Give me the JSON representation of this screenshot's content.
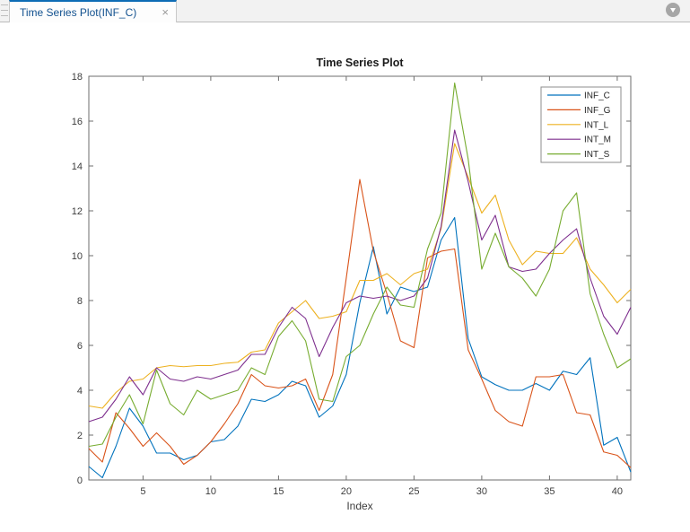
{
  "tab": {
    "label": "Time Series Plot(INF_C)",
    "close_icon": "×",
    "accent_color": "#0d6cb5",
    "text_color": "#12518f"
  },
  "toolbar": {
    "collapse_icon": "chevron-down"
  },
  "chart_data": {
    "type": "line",
    "title": "Time Series Plot",
    "xlabel": "Index",
    "ylabel": "",
    "xlim": [
      1,
      41
    ],
    "ylim": [
      0,
      18
    ],
    "n_points": 41,
    "xticks": [
      5,
      10,
      15,
      20,
      25,
      30,
      35,
      40
    ],
    "yticks": [
      0,
      2,
      4,
      6,
      8,
      10,
      12,
      14,
      16,
      18
    ],
    "grid": false,
    "legend_position": "top-right-inside",
    "axis_color": "#6e6e6e",
    "label_color": "#3d3d3d",
    "series": [
      {
        "name": "INF_C",
        "color": "#0072BD",
        "values": [
          0.6,
          0.1,
          1.5,
          3.2,
          2.4,
          1.2,
          1.2,
          0.9,
          1.1,
          1.7,
          1.8,
          2.4,
          3.6,
          3.5,
          3.8,
          4.4,
          4.2,
          2.8,
          3.3,
          4.7,
          7.9,
          10.4,
          7.4,
          8.6,
          8.4,
          8.6,
          10.7,
          11.7,
          6.3,
          4.6,
          4.25,
          4.0,
          4.0,
          4.3,
          4.0,
          4.85,
          4.7,
          5.45,
          1.55,
          1.9,
          0.35
        ]
      },
      {
        "name": "INF_G",
        "color": "#D95319",
        "values": [
          1.4,
          0.8,
          3.0,
          2.3,
          1.5,
          2.1,
          1.5,
          0.7,
          1.1,
          1.7,
          2.5,
          3.4,
          4.7,
          4.2,
          4.1,
          4.2,
          4.5,
          3.1,
          4.7,
          9.0,
          13.4,
          10.2,
          8.3,
          6.2,
          5.9,
          9.9,
          10.2,
          10.3,
          5.8,
          4.5,
          3.1,
          2.6,
          2.4,
          4.6,
          4.6,
          4.7,
          3.0,
          2.9,
          1.25,
          1.1,
          0.55
        ]
      },
      {
        "name": "INT_L",
        "color": "#EDB120",
        "values": [
          3.3,
          3.2,
          3.9,
          4.4,
          4.5,
          5.0,
          5.1,
          5.05,
          5.1,
          5.1,
          5.2,
          5.25,
          5.7,
          5.8,
          7.0,
          7.5,
          8.0,
          7.2,
          7.3,
          7.5,
          8.9,
          8.9,
          9.2,
          8.7,
          9.2,
          9.4,
          11.2,
          15.0,
          13.5,
          11.9,
          12.7,
          10.7,
          9.6,
          10.2,
          10.1,
          10.1,
          10.8,
          9.4,
          8.7,
          7.9,
          8.5
        ]
      },
      {
        "name": "INT_M",
        "color": "#7E2F8E",
        "values": [
          2.6,
          2.8,
          3.6,
          4.6,
          3.8,
          5.0,
          4.5,
          4.4,
          4.6,
          4.5,
          4.7,
          4.9,
          5.6,
          5.6,
          6.8,
          7.7,
          7.2,
          5.5,
          6.8,
          7.9,
          8.2,
          8.1,
          8.2,
          8.0,
          8.2,
          9.0,
          11.3,
          15.6,
          13.3,
          10.7,
          11.8,
          9.5,
          9.3,
          9.4,
          10.1,
          10.7,
          11.2,
          9.0,
          7.3,
          6.5,
          7.7
        ]
      },
      {
        "name": "INT_S",
        "color": "#77AC30",
        "values": [
          1.5,
          1.6,
          2.8,
          3.8,
          2.5,
          4.9,
          3.4,
          2.9,
          4.0,
          3.6,
          3.8,
          4.0,
          5.0,
          4.7,
          6.4,
          7.1,
          6.2,
          3.6,
          3.5,
          5.5,
          6.0,
          7.4,
          8.6,
          7.8,
          7.7,
          10.3,
          11.9,
          17.7,
          14.3,
          9.4,
          11.0,
          9.5,
          9.0,
          8.2,
          9.4,
          12.0,
          12.8,
          8.3,
          6.5,
          5.0,
          5.4
        ]
      }
    ]
  }
}
